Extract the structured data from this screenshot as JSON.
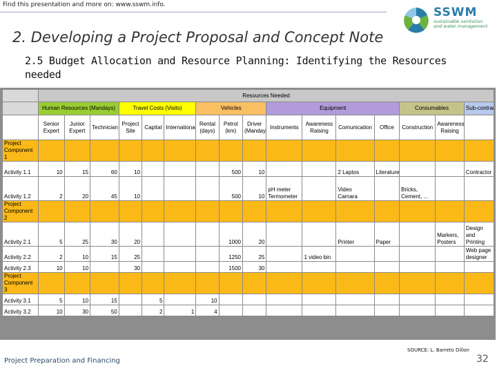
{
  "top_note": "Find this presentation and more on: www.sswm.info.",
  "logo": {
    "name": "SSWM",
    "tagline_1": "sustainable sanitation",
    "tagline_2": "and water management"
  },
  "title": "2. Developing a Project Proposal and Concept Note",
  "subtitle": "2.5 Budget Allocation and Resource Planning: Identifying the Resources needed",
  "table": {
    "super_header": "Resources Needed",
    "groups": [
      "Human Resources (Mandays)",
      "Travel Costs (Visits)",
      "Vehicles",
      "Equipment",
      "Consumables",
      "Sub-contracting"
    ],
    "columns": [
      "Senior Expert",
      "Junior Expert",
      "Technician",
      "Project Site",
      "Capital",
      "International",
      "Rental (days)",
      "Petrol (km)",
      "Driver (Mandays)",
      "Instruments",
      "Awareness Raising",
      "Comunication",
      "Office",
      "Construction",
      "Awareness Raising",
      ""
    ],
    "components": [
      {
        "label": "Project Component 1",
        "activities": [
          {
            "name": "Activity 1.1",
            "cells": [
              "10",
              "15",
              "60",
              "10",
              "",
              "",
              "",
              "500",
              "10",
              "",
              "",
              "2 Laptos",
              "Literature",
              "",
              "",
              "Contractor"
            ]
          },
          {
            "name": "Activity 1.2",
            "cells": [
              "2",
              "20",
              "45",
              "10",
              "",
              "",
              "",
              "500",
              "10",
              "pH meter Termometer",
              "",
              "Video Camara",
              "",
              "Bricks, Cement, ...",
              "",
              ""
            ]
          }
        ]
      },
      {
        "label": "Project Component 2",
        "activities": [
          {
            "name": "Activity 2.1",
            "cells": [
              "5",
              "25",
              "30",
              "20",
              "",
              "",
              "",
              "1000",
              "20",
              "",
              "",
              "Printer",
              "Paper",
              "",
              "Markers, Posters",
              "Design and Printing"
            ]
          },
          {
            "name": "Activity 2.2",
            "cells": [
              "2",
              "10",
              "15",
              "25",
              "",
              "",
              "",
              "1250",
              "25",
              "",
              "1 video bin",
              "",
              "",
              "",
              "",
              "Web page designer"
            ]
          },
          {
            "name": "Activity 2.3",
            "cells": [
              "10",
              "10",
              "",
              "30",
              "",
              "",
              "",
              "1500",
              "30",
              "",
              "",
              "",
              "",
              "",
              "",
              ""
            ]
          }
        ]
      },
      {
        "label": "Project Component 3",
        "activities": [
          {
            "name": "Activity 3.1",
            "cells": [
              "5",
              "10",
              "15",
              "",
              "5",
              "",
              "10",
              "",
              "",
              "",
              "",
              "",
              "",
              "",
              "",
              ""
            ]
          },
          {
            "name": "Activity 3.2",
            "cells": [
              "10",
              "30",
              "50",
              "",
              "2",
              "1",
              "4",
              "",
              "",
              "",
              "",
              "",
              "",
              "",
              "",
              ""
            ]
          }
        ]
      }
    ]
  },
  "source": "SOURCE: L. Barreto Dillon",
  "footer": "Project Preparation and Financing",
  "page_number": "32",
  "colors": {
    "human_resources": "#9acd32",
    "travel": "#ffff00",
    "vehicles": "#fbbf63",
    "equipment": "#b19cd9",
    "consumables": "#c4c48a",
    "subcontracting": "#b7c9ec",
    "component_row": "#fbb917"
  }
}
